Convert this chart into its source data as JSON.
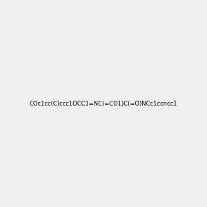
{
  "smiles": "COc1cc(C)ccc1OCC1=NC(=CO1)C(=O)NCc1ccncc1",
  "image_size": 300,
  "background_color": "#f0f0f0"
}
